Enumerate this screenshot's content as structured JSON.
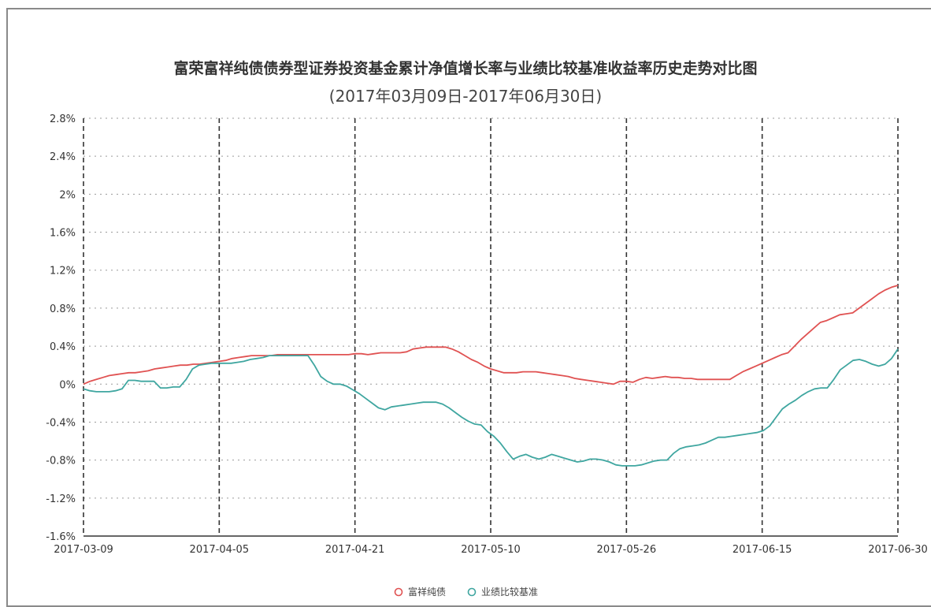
{
  "chart_data": {
    "type": "line",
    "title": "富荣富祥纯债债券型证券投资基金累计净值增长率与业绩比较基准收益率历史走势对比图",
    "subtitle": "(2017年03月09日-2017年06月30日)",
    "xlabel": "",
    "ylabel": "",
    "ylim": [
      -1.6,
      2.8
    ],
    "yticks": [
      "2.8%",
      "2.4%",
      "2%",
      "1.6%",
      "1.2%",
      "0.8%",
      "0.4%",
      "0%",
      "-0.4%",
      "-0.8%",
      "-1.2%",
      "-1.6%"
    ],
    "ytick_values": [
      2.8,
      2.4,
      2.0,
      1.6,
      1.2,
      0.8,
      0.4,
      0.0,
      -0.4,
      -0.8,
      -1.2,
      -1.6
    ],
    "xticks": [
      "2017-03-09",
      "2017-04-05",
      "2017-04-21",
      "2017-05-10",
      "2017-05-26",
      "2017-06-15",
      "2017-06-30"
    ],
    "grid": true,
    "legend_position": "bottom-center",
    "series": [
      {
        "name": "富祥纯债",
        "color": "#e05252",
        "values": [
          0.0,
          0.03,
          0.05,
          0.07,
          0.09,
          0.1,
          0.11,
          0.12,
          0.12,
          0.13,
          0.14,
          0.16,
          0.17,
          0.18,
          0.19,
          0.2,
          0.2,
          0.21,
          0.21,
          0.22,
          0.23,
          0.24,
          0.25,
          0.27,
          0.28,
          0.29,
          0.3,
          0.3,
          0.3,
          0.3,
          0.31,
          0.31,
          0.31,
          0.31,
          0.31,
          0.31,
          0.31,
          0.31,
          0.31,
          0.31,
          0.31,
          0.31,
          0.32,
          0.32,
          0.31,
          0.32,
          0.33,
          0.33,
          0.33,
          0.33,
          0.34,
          0.37,
          0.38,
          0.39,
          0.39,
          0.39,
          0.39,
          0.37,
          0.34,
          0.3,
          0.26,
          0.23,
          0.19,
          0.16,
          0.14,
          0.12,
          0.12,
          0.12,
          0.13,
          0.13,
          0.13,
          0.12,
          0.11,
          0.1,
          0.09,
          0.08,
          0.06,
          0.05,
          0.04,
          0.03,
          0.02,
          0.01,
          0.0,
          0.03,
          0.03,
          0.02,
          0.05,
          0.07,
          0.06,
          0.07,
          0.08,
          0.07,
          0.07,
          0.06,
          0.06,
          0.05,
          0.05,
          0.05,
          0.05,
          0.05,
          0.05,
          0.09,
          0.13,
          0.16,
          0.19,
          0.22,
          0.25,
          0.28,
          0.31,
          0.33,
          0.4,
          0.47,
          0.53,
          0.59,
          0.65,
          0.67,
          0.7,
          0.73,
          0.74,
          0.75,
          0.8,
          0.85,
          0.9,
          0.95,
          0.99,
          1.02,
          1.04
        ]
      },
      {
        "name": "业绩比较基准",
        "color": "#3fa6a0",
        "values": [
          -0.05,
          -0.07,
          -0.08,
          -0.08,
          -0.08,
          -0.07,
          -0.05,
          0.04,
          0.04,
          0.03,
          0.03,
          0.03,
          -0.04,
          -0.04,
          -0.03,
          -0.03,
          0.05,
          0.16,
          0.2,
          0.21,
          0.22,
          0.22,
          0.22,
          0.22,
          0.23,
          0.24,
          0.26,
          0.27,
          0.28,
          0.3,
          0.3,
          0.3,
          0.3,
          0.3,
          0.3,
          0.3,
          0.2,
          0.08,
          0.03,
          0.0,
          0.0,
          -0.02,
          -0.06,
          -0.1,
          -0.15,
          -0.2,
          -0.25,
          -0.27,
          -0.24,
          -0.23,
          -0.22,
          -0.21,
          -0.2,
          -0.19,
          -0.19,
          -0.19,
          -0.21,
          -0.25,
          -0.3,
          -0.35,
          -0.39,
          -0.42,
          -0.43,
          -0.5,
          -0.55,
          -0.62,
          -0.71,
          -0.79,
          -0.76,
          -0.74,
          -0.77,
          -0.79,
          -0.77,
          -0.74,
          -0.76,
          -0.78,
          -0.8,
          -0.82,
          -0.81,
          -0.79,
          -0.79,
          -0.8,
          -0.82,
          -0.85,
          -0.86,
          -0.86,
          -0.86,
          -0.85,
          -0.83,
          -0.81,
          -0.8,
          -0.8,
          -0.73,
          -0.68,
          -0.66,
          -0.65,
          -0.64,
          -0.62,
          -0.59,
          -0.56,
          -0.56,
          -0.55,
          -0.54,
          -0.53,
          -0.52,
          -0.51,
          -0.49,
          -0.44,
          -0.35,
          -0.26,
          -0.21,
          -0.17,
          -0.12,
          -0.08,
          -0.05,
          -0.04,
          -0.04,
          0.05,
          0.15,
          0.2,
          0.25,
          0.26,
          0.24,
          0.21,
          0.19,
          0.21,
          0.27,
          0.37
        ]
      }
    ]
  }
}
